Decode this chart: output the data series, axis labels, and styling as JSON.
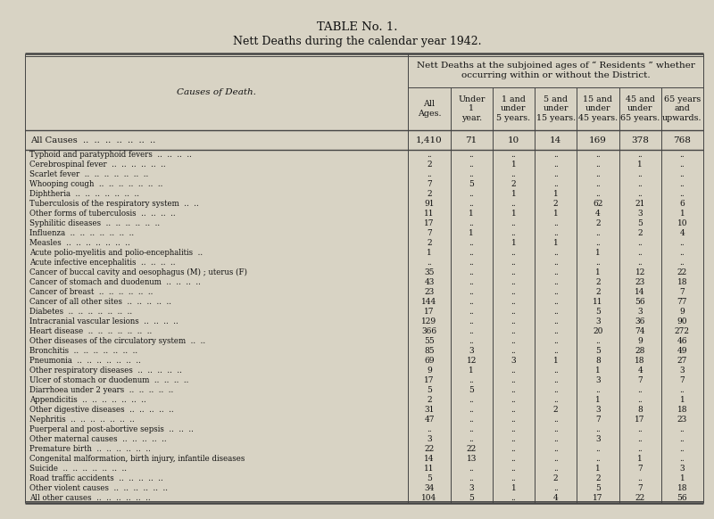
{
  "title1": "TABLE No. 1.",
  "title2": "Nett Deaths during the calendar year 1942.",
  "header_main": "Nett Deaths at the subjoined ages of “ Residents ” whether\noccurring within or without the District.",
  "col_headers": [
    "All\nAges.",
    "Under\n1\nyear.",
    "1 and\nunder\n5 years.",
    "5 and\nunder\n15 years.",
    "15 and\nunder\n45 years.",
    "45 and\nunder\n65 years.",
    "65 years\nand\nupwards."
  ],
  "causes_col_header": "Causes of Death.",
  "all_causes_label": "All Causes  ..  ..  ..  ..  ..  ..  ..",
  "all_causes_data": [
    "1,410",
    "71",
    "10",
    "14",
    "169",
    "378",
    "768"
  ],
  "rows": [
    [
      "Typhoid and paratyphoid fevers  ..  ..  ..  ..",
      "..",
      "..",
      "..",
      "..",
      "..",
      "..",
      ".."
    ],
    [
      "Cerebrospinal fever  ..  ..  ..  ..  ..  ..",
      "2",
      "..",
      "1",
      "..",
      "..",
      "1",
      ".."
    ],
    [
      "Scarlet fever  ..  ..  ..  ..  ..  ..  ..",
      "..",
      "..",
      "..",
      "..",
      "..",
      "..",
      ".."
    ],
    [
      "Whooping cough  ..  ..  ..  ..  ..  ..  ..",
      "7",
      "5",
      "2",
      "..",
      "..",
      "..",
      ".."
    ],
    [
      "Diphtheria  ..  ..  ..  ..  ..  ..  ..",
      "2",
      "..",
      "1",
      "1",
      "..",
      "..",
      ".."
    ],
    [
      "Tuberculosis of the respiratory system  ..  ..",
      "91",
      "..",
      "..",
      "2",
      "62",
      "21",
      "6"
    ],
    [
      "Other forms of tuberculosis  ..  ..  ..  ..",
      "11",
      "1",
      "1",
      "1",
      "4",
      "3",
      "1"
    ],
    [
      "Syphilitic diseases  ..  ..  ..  ..  ..  ..",
      "17",
      "..",
      "..",
      "..",
      "2",
      "5",
      "10"
    ],
    [
      "Influenza  ..  ..  ..  ..  ..  ..  ..",
      "7",
      "1",
      "..",
      "..",
      "..",
      "2",
      "4"
    ],
    [
      "Measles  ..  ..  ..  ..  ..  ..  ..",
      "2",
      "..",
      "1",
      "1",
      "..",
      "..",
      ".."
    ],
    [
      "Acute polio-myelitis and polio-encephalitis  ..",
      "1",
      "..",
      "..",
      "..",
      "1",
      "..",
      ".."
    ],
    [
      "Acute infective encephalitis  ..  ..  ..  ..",
      "..",
      "..",
      "..",
      "..",
      "..",
      "..",
      ".."
    ],
    [
      "Cancer of buccal cavity and oesophagus (M) ; uterus (F)",
      "35",
      "..",
      "..",
      "..",
      "1",
      "12",
      "22"
    ],
    [
      "Cancer of stomach and duodenum  ..  ..  ..  ..",
      "43",
      "..",
      "..",
      "..",
      "2",
      "23",
      "18"
    ],
    [
      "Cancer of breast  ..  ..  ..  ..  ..  ..",
      "23",
      "..",
      "..",
      "..",
      "2",
      "14",
      "7"
    ],
    [
      "Cancer of all other sites  ..  ..  ..  ..  ..",
      "144",
      "..",
      "..",
      "..",
      "11",
      "56",
      "77"
    ],
    [
      "Diabetes  ..  ..  ..  ..  ..  ..  ..",
      "17",
      "..",
      "..",
      "..",
      "5",
      "3",
      "9"
    ],
    [
      "Intracranial vascular lesions  ..  ..  ..  ..",
      "129",
      "..",
      "..",
      "..",
      "3",
      "36",
      "90"
    ],
    [
      "Heart disease  ..  ..  ..  ..  ..  ..  ..",
      "366",
      "..",
      "..",
      "..",
      "20",
      "74",
      "272"
    ],
    [
      "Other diseases of the circulatory system  ..  ..",
      "55",
      "..",
      "..",
      "..",
      "..",
      "9",
      "46"
    ],
    [
      "Bronchitis  ..  ..  ..  ..  ..  ..  ..",
      "85",
      "3",
      "..",
      "..",
      "5",
      "28",
      "49"
    ],
    [
      "Pneumonia  ..  ..  ..  ..  ..  ..  ..",
      "69",
      "12",
      "3",
      "1",
      "8",
      "18",
      "27"
    ],
    [
      "Other respiratory diseases  ..  ..  ..  ..  ..",
      "9",
      "1",
      "..",
      "..",
      "1",
      "4",
      "3"
    ],
    [
      "Ulcer of stomach or duodenum  ..  ..  ..  ..",
      "17",
      "..",
      "..",
      "..",
      "3",
      "7",
      "7"
    ],
    [
      "Diarrhoea under 2 years  ..  ..  ..  ..  ..",
      "5",
      "5",
      "..",
      "..",
      "..",
      "..",
      ".."
    ],
    [
      "Appendicitis  ..  ..  ..  ..  ..  ..  ..",
      "2",
      "..",
      "..",
      "..",
      "1",
      "..",
      "1"
    ],
    [
      "Other digestive diseases  ..  ..  ..  ..  ..",
      "31",
      "..",
      "..",
      "2",
      "3",
      "8",
      "18"
    ],
    [
      "Nephritis  ..  ..  ..  ..  ..  ..  ..",
      "47",
      "..",
      "..",
      "..",
      "7",
      "17",
      "23"
    ],
    [
      "Puerperal and post-abortive sepsis  ..  ..  ..",
      "..",
      "..",
      "..",
      "..",
      "..",
      "..",
      ".."
    ],
    [
      "Other maternal causes  ..  ..  ..  ..  ..",
      "3",
      "..",
      "..",
      "..",
      "3",
      "..",
      ".."
    ],
    [
      "Premature birth  ..  ..  ..  ..  ..  ..",
      "22",
      "22",
      "..",
      "..",
      "..",
      "..",
      ".."
    ],
    [
      "Congenital malformation, birth injury, infantile diseases",
      "14",
      "13",
      "..",
      "..",
      "..",
      "1",
      ".."
    ],
    [
      "Suicide  ..  ..  ..  ..  ..  ..  ..",
      "11",
      "..",
      "..",
      "..",
      "1",
      "7",
      "3"
    ],
    [
      "Road traffic accidents  ..  ..  ..  ..  ..",
      "5",
      "..",
      "..",
      "2",
      "2",
      "..",
      "1"
    ],
    [
      "Other violent causes  ..  ..  ..  ..  ..  ..",
      "34",
      "3",
      "1",
      "..",
      "5",
      "7",
      "18"
    ],
    [
      "All other causes  ..  ..  ..  ..  ..  ..",
      "104",
      "5",
      "..",
      "4",
      "17",
      "22",
      "56"
    ]
  ],
  "bg_color": "#d8d3c4",
  "text_color": "#111111",
  "line_color": "#444444",
  "fig_width": 8.0,
  "fig_height": 5.82,
  "dpi": 100
}
